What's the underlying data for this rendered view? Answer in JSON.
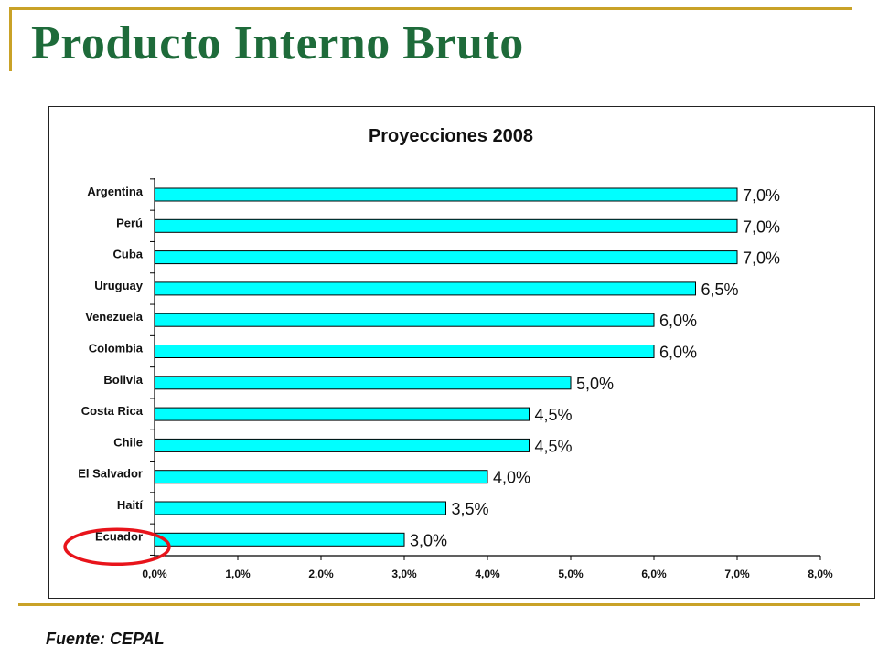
{
  "slide": {
    "title": "Producto Interno Bruto",
    "source": "Fuente: CEPAL"
  },
  "colors": {
    "title": "#1E6B3A",
    "rule": "#C9A227",
    "bar": "#00FFFF",
    "highlight_ellipse": "#E8141B"
  },
  "chart_data": {
    "type": "bar",
    "orientation": "horizontal",
    "title": "Proyecciones 2008",
    "xlabel": "",
    "ylabel": "",
    "categories": [
      "Argentina",
      "Perú",
      "Cuba",
      "Uruguay",
      "Venezuela",
      "Colombia",
      "Bolivia",
      "Costa Rica",
      "Chile",
      "El Salvador",
      "Haití",
      "Ecuador"
    ],
    "values": [
      7.0,
      7.0,
      7.0,
      6.5,
      6.0,
      6.0,
      5.0,
      4.5,
      4.5,
      4.0,
      3.5,
      3.0
    ],
    "value_labels": [
      "7,0%",
      "7,0%",
      "7,0%",
      "6,5%",
      "6,0%",
      "6,0%",
      "5,0%",
      "4,5%",
      "4,5%",
      "4,0%",
      "3,5%",
      "3,0%"
    ],
    "xlim": [
      0,
      8
    ],
    "x_ticks": [
      0,
      1,
      2,
      3,
      4,
      5,
      6,
      7,
      8
    ],
    "x_tick_labels": [
      "0,0%",
      "1,0%",
      "2,0%",
      "3,0%",
      "4,0%",
      "5,0%",
      "6,0%",
      "7,0%",
      "8,0%"
    ],
    "grid": false,
    "legend": "none",
    "highlighted_category": "Ecuador"
  }
}
